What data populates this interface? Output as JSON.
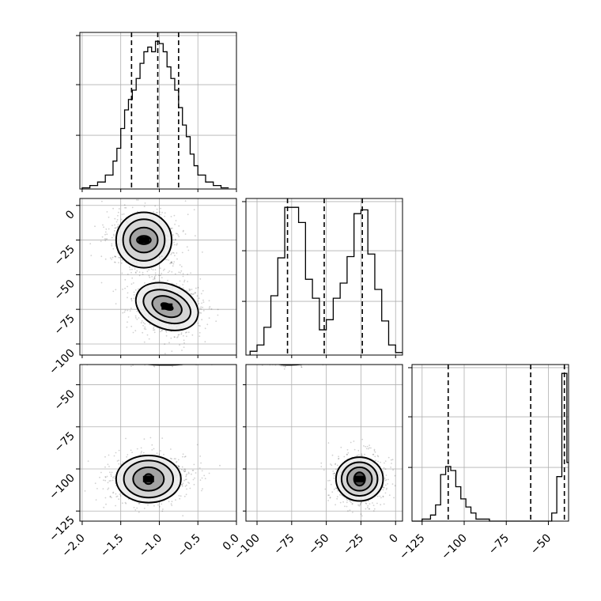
{
  "chart_data": {
    "type": "corner",
    "grid": true,
    "parameters": [
      {
        "ticks": [
          -2.0,
          -1.5,
          -1.0,
          -0.5,
          0.0
        ],
        "tick_labels": [
          "−2.0",
          "−1.5",
          "−1.0",
          "−0.5",
          "0.0"
        ],
        "range": [
          -2.03,
          0.0
        ]
      },
      {
        "ticks": [
          -100,
          -75,
          -50,
          -25,
          0
        ],
        "tick_labels": [
          "−100",
          "−75",
          "−50",
          "−25",
          "0"
        ],
        "range": [
          -108,
          5
        ]
      },
      {
        "ticks": [
          -125,
          -100,
          -75,
          -50
        ],
        "tick_labels": [
          "−125",
          "−100",
          "−75",
          "−50"
        ],
        "range": [
          -131,
          -38
        ]
      }
    ],
    "y_tick_labels": {
      "row1": [
        "0",
        "−25",
        "−50",
        "−75",
        "−100"
      ],
      "row2": [
        "−50",
        "−75",
        "−100",
        "−125"
      ]
    },
    "histograms": [
      {
        "param": 0,
        "bin_edges": [
          -2.0,
          -1.9,
          -1.8,
          -1.7,
          -1.6,
          -1.55,
          -1.5,
          -1.45,
          -1.4,
          -1.35,
          -1.3,
          -1.25,
          -1.2,
          -1.15,
          -1.1,
          -1.05,
          -1.0,
          -0.95,
          -0.9,
          -0.85,
          -0.8,
          -0.75,
          -0.7,
          -0.65,
          -0.6,
          -0.55,
          -0.5,
          -0.4,
          -0.3,
          -0.2,
          -0.1
        ],
        "counts": [
          1,
          3,
          6,
          12,
          24,
          35,
          52,
          68,
          77,
          85,
          95,
          108,
          118,
          122,
          118,
          127,
          125,
          118,
          105,
          95,
          85,
          70,
          55,
          45,
          30,
          20,
          12,
          6,
          3,
          1
        ],
        "quantiles": [
          -1.36,
          -1.02,
          -0.75
        ]
      },
      {
        "param": 1,
        "bin_edges": [
          -105,
          -100,
          -95,
          -90,
          -85,
          -80,
          -75,
          -70,
          -65,
          -60,
          -55,
          -50,
          -45,
          -40,
          -35,
          -30,
          -25,
          -20,
          -15,
          -10,
          -5,
          0,
          5
        ],
        "counts": [
          3,
          8,
          22,
          47,
          77,
          117,
          117,
          105,
          60,
          45,
          20,
          28,
          45,
          57,
          78,
          112,
          115,
          80,
          52,
          27,
          8,
          2
        ],
        "quantiles": [
          -78,
          -51.5,
          -24
        ]
      },
      {
        "param": 2,
        "bin_edges": [
          -131,
          -125,
          -120,
          -117,
          -114,
          -111,
          -108,
          -105,
          -102,
          -99,
          -96,
          -93,
          -90,
          -85,
          -60,
          -48,
          -45,
          -42,
          -39,
          -38
        ],
        "counts": [
          0,
          1,
          3,
          8,
          23,
          27,
          25,
          17,
          11,
          7,
          4,
          1,
          1,
          0,
          0,
          4,
          22,
          73,
          29
        ],
        "quantiles": [
          -109.5,
          -60.5,
          -40.5
        ]
      }
    ],
    "scatter_pairs": [
      {
        "x_param": 0,
        "y_param": 1,
        "clusters": [
          {
            "center": [
              -1.2,
              -25
            ],
            "spread": [
              0.24,
              11
            ],
            "contours": [
              [
                0.09,
                3
              ],
              [
                0.18,
                9
              ],
              [
                0.27,
                15
              ],
              [
                0.36,
                20
              ]
            ]
          },
          {
            "center": [
              -0.9,
              -73
            ],
            "spread": [
              0.24,
              11
            ],
            "contours": [
              [
                0.08,
                2
              ],
              [
                0.2,
                7
              ],
              [
                0.32,
                11
              ],
              [
                0.42,
                16
              ]
            ],
            "tilt_deg": 22
          }
        ]
      },
      {
        "x_param": 0,
        "y_param": 2,
        "clusters": [
          {
            "center": [
              -0.92,
              -34
            ],
            "spread": [
              0.3,
              2
            ],
            "contours": [
              [
                0.07,
                1.2
              ],
              [
                0.24,
                2.2
              ],
              [
                0.38,
                3.3
              ],
              [
                0.52,
                4.2
              ]
            ]
          },
          {
            "center": [
              -1.14,
              -106
            ],
            "spread": [
              0.28,
              8
            ],
            "contours": [
              [
                0.06,
                3
              ],
              [
                0.2,
                7
              ],
              [
                0.32,
                11
              ],
              [
                0.42,
                14
              ]
            ]
          }
        ]
      },
      {
        "x_param": 1,
        "y_param": 2,
        "clusters": [
          {
            "center": [
              -76,
              -34
            ],
            "spread": [
              10,
              2
            ],
            "contours": [
              [
                2.5,
                1.2
              ],
              [
                8,
                2.2
              ],
              [
                13,
                3.3
              ],
              [
                19,
                4.2
              ]
            ]
          },
          {
            "center": [
              -26,
              -106
            ],
            "spread": [
              10,
              8
            ],
            "contours": [
              [
                4,
                4
              ],
              [
                9,
                7
              ],
              [
                13,
                10
              ],
              [
                17,
                13
              ]
            ]
          }
        ]
      }
    ]
  }
}
